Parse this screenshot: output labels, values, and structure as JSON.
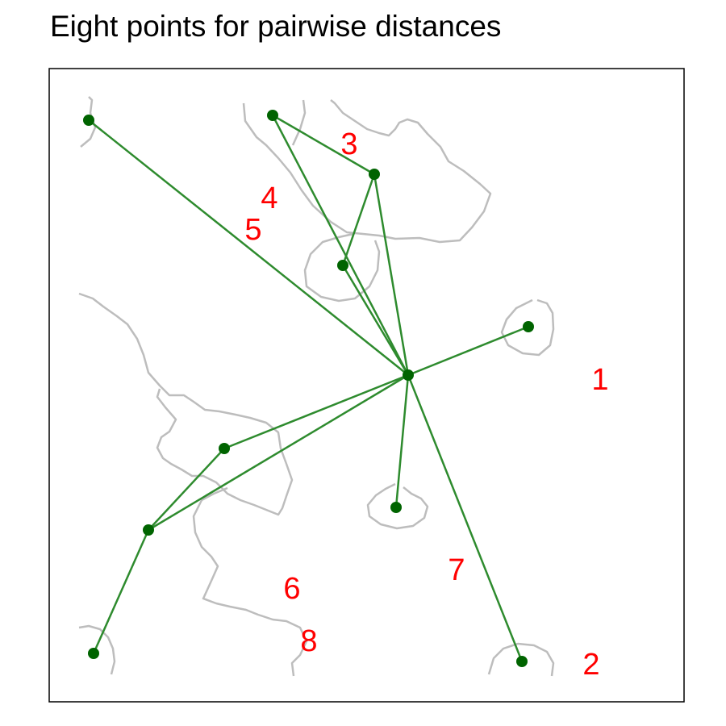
{
  "title": "Eight points for pairwise distances",
  "colors": {
    "boundary": "#bdbdbd",
    "edge": "#2e8b2e",
    "node": "#006400",
    "label": "#ff0000",
    "frame": "#000000"
  },
  "labels": [
    "1",
    "2",
    "3",
    "4",
    "5",
    "6",
    "7",
    "8"
  ]
}
